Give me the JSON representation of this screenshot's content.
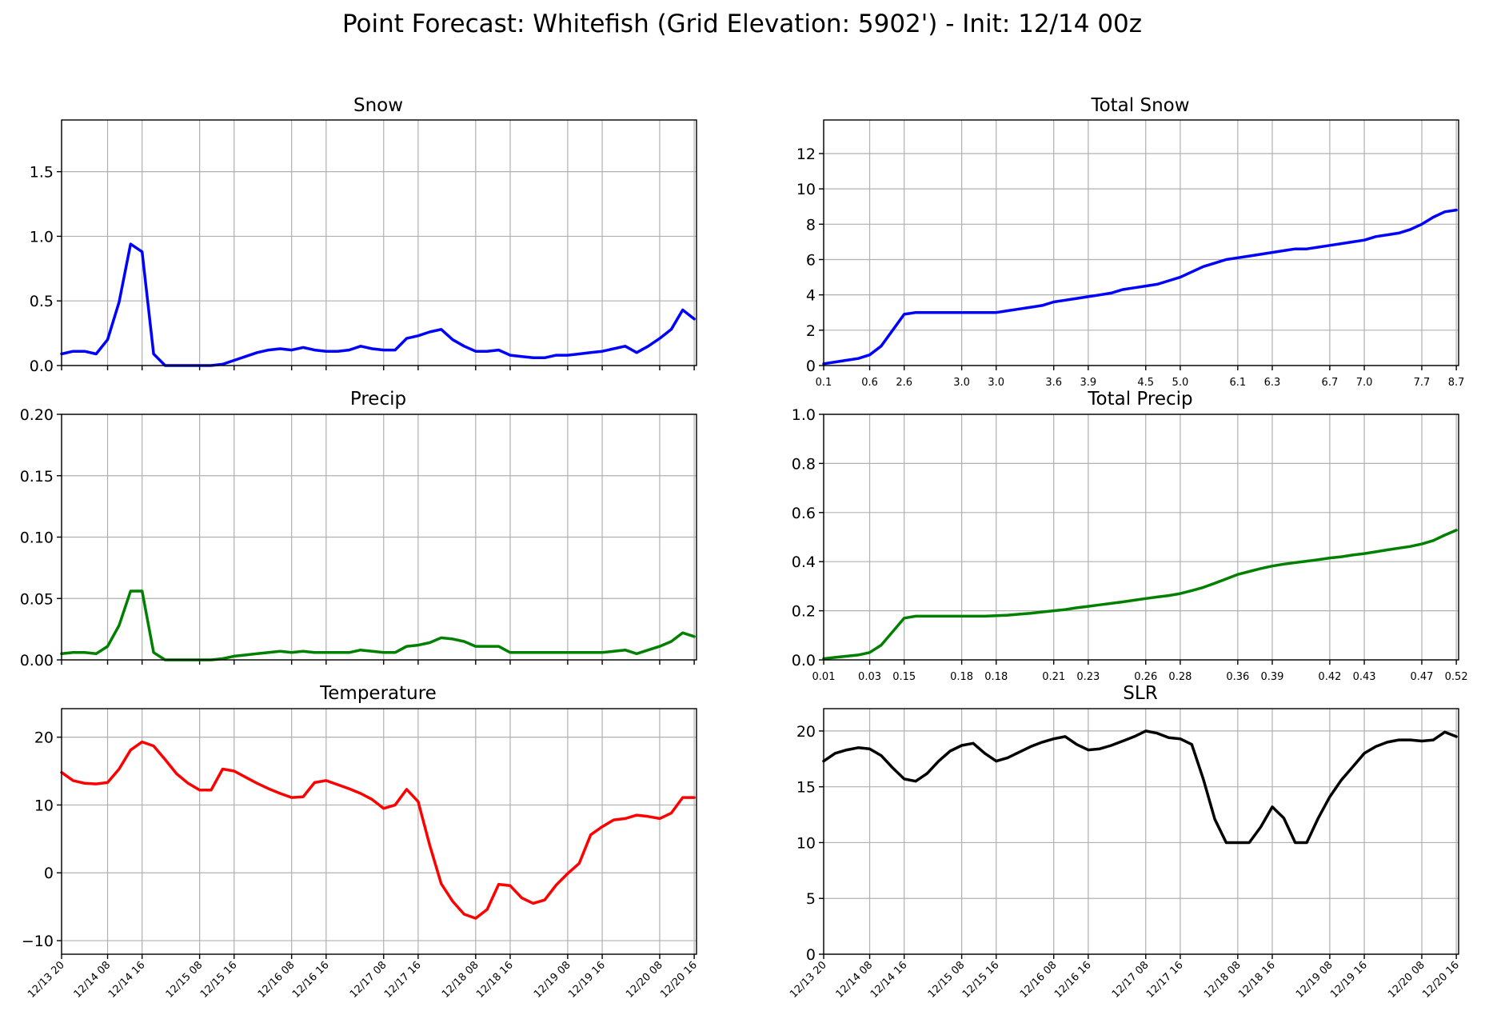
{
  "title": "Point Forecast: Whitefish (Grid Elevation: 5902') - Init: 12/14 00z",
  "time_ticks": [
    {
      "label": "12/13 20",
      "i": 0
    },
    {
      "label": "12/14 08",
      "i": 4
    },
    {
      "label": "12/14 16",
      "i": 7
    },
    {
      "label": "12/15 08",
      "i": 12
    },
    {
      "label": "12/15 16",
      "i": 15
    },
    {
      "label": "12/16 08",
      "i": 20
    },
    {
      "label": "12/16 16",
      "i": 23
    },
    {
      "label": "12/17 08",
      "i": 28
    },
    {
      "label": "12/17 16",
      "i": 31
    },
    {
      "label": "12/18 08",
      "i": 36
    },
    {
      "label": "12/18 16",
      "i": 39
    },
    {
      "label": "12/19 08",
      "i": 44
    },
    {
      "label": "12/19 16",
      "i": 47
    },
    {
      "label": "12/20 08",
      "i": 52
    },
    {
      "label": "12/20 16",
      "i": 55
    }
  ],
  "chart_data": [
    {
      "id": "snow",
      "type": "line",
      "title": "Snow",
      "color": "#0000ff",
      "ylim": [
        0,
        1.9
      ],
      "yticks": [
        0.0,
        0.5,
        1.0,
        1.5
      ],
      "ytick_labels": [
        "0.0",
        "0.5",
        "1.0",
        "1.5"
      ],
      "x_index_max": 55.2,
      "values": [
        0.09,
        0.11,
        0.11,
        0.09,
        0.2,
        0.49,
        0.94,
        0.88,
        0.09,
        0.0,
        0.0,
        0.0,
        0.0,
        0.0,
        0.01,
        0.04,
        0.07,
        0.1,
        0.12,
        0.13,
        0.12,
        0.14,
        0.12,
        0.11,
        0.11,
        0.12,
        0.15,
        0.13,
        0.12,
        0.12,
        0.21,
        0.23,
        0.26,
        0.28,
        0.2,
        0.15,
        0.11,
        0.11,
        0.12,
        0.08,
        0.07,
        0.06,
        0.06,
        0.08,
        0.08,
        0.09,
        0.1,
        0.11,
        0.13,
        0.15,
        0.1,
        0.15,
        0.21,
        0.28,
        0.43,
        0.36
      ]
    },
    {
      "id": "total-snow",
      "type": "line",
      "title": "Total Snow",
      "color": "#0000ff",
      "ylim": [
        0,
        13.9
      ],
      "yticks": [
        0,
        2,
        4,
        6,
        8,
        10,
        12
      ],
      "ytick_labels": [
        "0",
        "2",
        "4",
        "6",
        "8",
        "10",
        "12"
      ],
      "x_index_max": 55.2,
      "x_ticks": [
        {
          "label": "0.1",
          "i": 0
        },
        {
          "label": "0.6",
          "i": 4
        },
        {
          "label": "2.6",
          "i": 7
        },
        {
          "label": "3.0",
          "i": 12
        },
        {
          "label": "3.0",
          "i": 15
        },
        {
          "label": "3.6",
          "i": 20
        },
        {
          "label": "3.9",
          "i": 23
        },
        {
          "label": "4.5",
          "i": 28
        },
        {
          "label": "5.0",
          "i": 31
        },
        {
          "label": "6.1",
          "i": 36
        },
        {
          "label": "6.3",
          "i": 39
        },
        {
          "label": "6.7",
          "i": 44
        },
        {
          "label": "7.0",
          "i": 47
        },
        {
          "label": "7.7",
          "i": 52
        },
        {
          "label": "8.7",
          "i": 55
        }
      ],
      "values": [
        0.1,
        0.2,
        0.3,
        0.4,
        0.6,
        1.1,
        2.0,
        2.9,
        3.0,
        3.0,
        3.0,
        3.0,
        3.0,
        3.0,
        3.0,
        3.0,
        3.1,
        3.2,
        3.3,
        3.4,
        3.6,
        3.7,
        3.8,
        3.9,
        4.0,
        4.1,
        4.3,
        4.4,
        4.5,
        4.6,
        4.8,
        5.0,
        5.3,
        5.6,
        5.8,
        6.0,
        6.1,
        6.2,
        6.3,
        6.4,
        6.5,
        6.6,
        6.6,
        6.7,
        6.8,
        6.9,
        7.0,
        7.1,
        7.3,
        7.4,
        7.5,
        7.7,
        8.0,
        8.4,
        8.7,
        8.8
      ]
    },
    {
      "id": "precip",
      "type": "line",
      "title": "Precip",
      "color": "#008000",
      "ylim": [
        0,
        0.2
      ],
      "yticks": [
        0.0,
        0.05,
        0.1,
        0.15,
        0.2
      ],
      "ytick_labels": [
        "0.00",
        "0.05",
        "0.10",
        "0.15",
        "0.20"
      ],
      "x_index_max": 55.2,
      "values": [
        0.005,
        0.006,
        0.006,
        0.005,
        0.011,
        0.028,
        0.056,
        0.056,
        0.006,
        0.0,
        0.0,
        0.0,
        0.0,
        0.0,
        0.001,
        0.003,
        0.004,
        0.005,
        0.006,
        0.007,
        0.006,
        0.007,
        0.006,
        0.006,
        0.006,
        0.006,
        0.008,
        0.007,
        0.006,
        0.006,
        0.011,
        0.012,
        0.014,
        0.018,
        0.017,
        0.015,
        0.011,
        0.011,
        0.011,
        0.006,
        0.006,
        0.006,
        0.006,
        0.006,
        0.006,
        0.006,
        0.006,
        0.006,
        0.007,
        0.008,
        0.005,
        0.008,
        0.011,
        0.015,
        0.022,
        0.019
      ]
    },
    {
      "id": "total-precip",
      "type": "line",
      "title": "Total Precip",
      "color": "#008000",
      "ylim": [
        0,
        1.0
      ],
      "yticks": [
        0.0,
        0.2,
        0.4,
        0.6,
        0.8,
        1.0
      ],
      "ytick_labels": [
        "0.0",
        "0.2",
        "0.4",
        "0.6",
        "0.8",
        "1.0"
      ],
      "x_index_max": 55.2,
      "x_ticks": [
        {
          "label": "0.01",
          "i": 0
        },
        {
          "label": "0.03",
          "i": 4
        },
        {
          "label": "0.15",
          "i": 7
        },
        {
          "label": "0.18",
          "i": 12
        },
        {
          "label": "0.18",
          "i": 15
        },
        {
          "label": "0.21",
          "i": 20
        },
        {
          "label": "0.23",
          "i": 23
        },
        {
          "label": "0.26",
          "i": 28
        },
        {
          "label": "0.28",
          "i": 31
        },
        {
          "label": "0.36",
          "i": 36
        },
        {
          "label": "0.39",
          "i": 39
        },
        {
          "label": "0.42",
          "i": 44
        },
        {
          "label": "0.43",
          "i": 47
        },
        {
          "label": "0.47",
          "i": 52
        },
        {
          "label": "0.52",
          "i": 55
        }
      ],
      "values": [
        0.005,
        0.01,
        0.015,
        0.02,
        0.03,
        0.06,
        0.115,
        0.17,
        0.178,
        0.178,
        0.178,
        0.178,
        0.178,
        0.178,
        0.178,
        0.18,
        0.182,
        0.186,
        0.19,
        0.195,
        0.2,
        0.205,
        0.212,
        0.218,
        0.224,
        0.23,
        0.236,
        0.243,
        0.25,
        0.256,
        0.262,
        0.27,
        0.282,
        0.295,
        0.312,
        0.33,
        0.348,
        0.36,
        0.372,
        0.382,
        0.39,
        0.396,
        0.402,
        0.408,
        0.415,
        0.42,
        0.427,
        0.433,
        0.44,
        0.448,
        0.455,
        0.462,
        0.472,
        0.486,
        0.508,
        0.528
      ]
    },
    {
      "id": "temperature",
      "type": "line",
      "title": "Temperature",
      "color": "#ff0000",
      "ylim": [
        -12,
        24.2
      ],
      "yticks": [
        -10,
        0,
        10,
        20
      ],
      "ytick_labels": [
        "−10",
        "0",
        "10",
        "20"
      ],
      "x_index_max": 55.2,
      "values": [
        14.8,
        13.6,
        13.2,
        13.1,
        13.3,
        15.3,
        18.1,
        19.3,
        18.7,
        16.7,
        14.6,
        13.2,
        12.2,
        12.2,
        15.3,
        15.0,
        14.1,
        13.2,
        12.4,
        11.7,
        11.1,
        11.2,
        13.3,
        13.6,
        13.0,
        12.4,
        11.7,
        10.8,
        9.5,
        10.0,
        12.3,
        10.5,
        4.1,
        -1.6,
        -4.2,
        -6.1,
        -6.7,
        -5.4,
        -1.7,
        -1.9,
        -3.7,
        -4.5,
        -4.0,
        -1.8,
        -0.1,
        1.4,
        5.6,
        6.8,
        7.8,
        8.0,
        8.5,
        8.3,
        8.0,
        8.8,
        11.1,
        11.1
      ]
    },
    {
      "id": "slr",
      "type": "line",
      "title": "SLR",
      "color": "#000000",
      "ylim": [
        0,
        22
      ],
      "yticks": [
        0,
        5,
        10,
        15,
        20
      ],
      "ytick_labels": [
        "0",
        "5",
        "10",
        "15",
        "20"
      ],
      "x_index_max": 55.2,
      "values": [
        17.3,
        18.0,
        18.3,
        18.5,
        18.4,
        17.8,
        16.7,
        15.7,
        15.5,
        16.2,
        17.3,
        18.2,
        18.7,
        18.9,
        18.0,
        17.3,
        17.6,
        18.1,
        18.6,
        19.0,
        19.3,
        19.5,
        18.8,
        18.3,
        18.4,
        18.7,
        19.1,
        19.5,
        20.0,
        19.8,
        19.4,
        19.3,
        18.8,
        15.7,
        12.1,
        10.0,
        10.0,
        10.0,
        11.4,
        13.2,
        12.2,
        10.0,
        10.0,
        12.2,
        14.1,
        15.6,
        16.8,
        18.0,
        18.6,
        19.0,
        19.2,
        19.2,
        19.1,
        19.2,
        19.9,
        19.5
      ]
    }
  ]
}
